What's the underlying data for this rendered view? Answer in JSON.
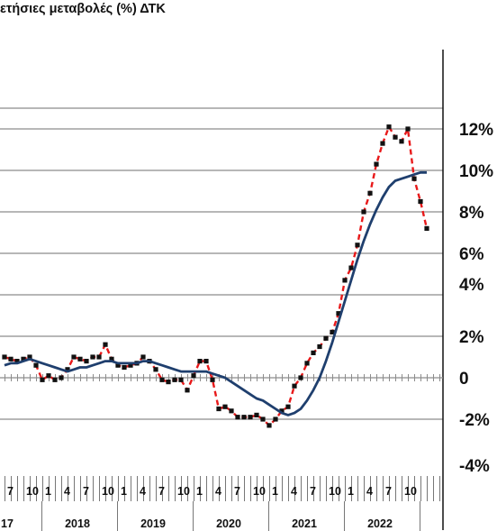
{
  "chart_data": {
    "type": "line",
    "title": "ετήσιες μεταβολές (%) ΔΤΚ",
    "y_ticks": [
      {
        "label": "12%",
        "value": 12
      },
      {
        "label": "10%",
        "value": 10
      },
      {
        "label": "8%",
        "value": 8
      },
      {
        "label": "6%",
        "value": 6
      },
      {
        "label": "4%",
        "value": 4
      },
      {
        "label": "2%",
        "value": 2
      },
      {
        "label": "0",
        "value": 0
      },
      {
        "label": "-2%",
        "value": -2
      },
      {
        "label": "-4%",
        "value": -4
      }
    ],
    "ylim": [
      -4,
      14
    ],
    "grid": true,
    "month_tick_labels": [
      "7",
      "10",
      "1",
      "4",
      "7",
      "10",
      "1",
      "4",
      "7",
      "10",
      "1",
      "4",
      "7",
      "10",
      "1",
      "4",
      "7",
      "10",
      "1",
      "4",
      "7",
      "10"
    ],
    "year_labels": [
      "17",
      "2018",
      "2019",
      "2020",
      "2021",
      "2022"
    ],
    "x_start": "2017-07",
    "series": [
      {
        "style": "dashed-markers",
        "color": "#e8191a",
        "values": [
          1.0,
          0.9,
          0.8,
          0.9,
          1.0,
          0.6,
          -0.1,
          0.1,
          -0.1,
          0.0,
          0.4,
          1.0,
          0.9,
          0.8,
          1.0,
          1.0,
          1.6,
          0.9,
          0.6,
          0.5,
          0.6,
          0.7,
          1.0,
          0.8,
          0.4,
          -0.1,
          -0.2,
          -0.1,
          -0.1,
          -0.6,
          0.1,
          0.8,
          0.8,
          -0.1,
          -1.5,
          -1.4,
          -1.6,
          -1.9,
          -1.9,
          -1.9,
          -1.8,
          -2.0,
          -2.3,
          -2.0,
          -1.6,
          -1.4,
          -0.4,
          0.0,
          0.7,
          1.2,
          1.5,
          1.9,
          2.2,
          3.1,
          4.7,
          5.3,
          6.4,
          8.0,
          8.9,
          10.3,
          11.3,
          12.1,
          11.6,
          11.4,
          12.0,
          9.6,
          8.5,
          7.2
        ]
      },
      {
        "style": "solid",
        "color": "#1f3f6e",
        "values": [
          0.6,
          0.7,
          0.7,
          0.8,
          0.9,
          0.8,
          0.7,
          0.6,
          0.5,
          0.4,
          0.3,
          0.4,
          0.5,
          0.5,
          0.6,
          0.7,
          0.8,
          0.8,
          0.7,
          0.7,
          0.7,
          0.7,
          0.8,
          0.8,
          0.7,
          0.6,
          0.5,
          0.4,
          0.3,
          0.3,
          0.3,
          0.3,
          0.3,
          0.2,
          0.1,
          0.0,
          -0.2,
          -0.4,
          -0.6,
          -0.8,
          -1.0,
          -1.1,
          -1.3,
          -1.5,
          -1.7,
          -1.8,
          -1.7,
          -1.5,
          -1.1,
          -0.6,
          0.0,
          0.8,
          1.7,
          2.7,
          3.7,
          4.7,
          5.7,
          6.6,
          7.4,
          8.1,
          8.7,
          9.2,
          9.5,
          9.6,
          9.7,
          9.8,
          9.9,
          9.9
        ]
      }
    ]
  }
}
